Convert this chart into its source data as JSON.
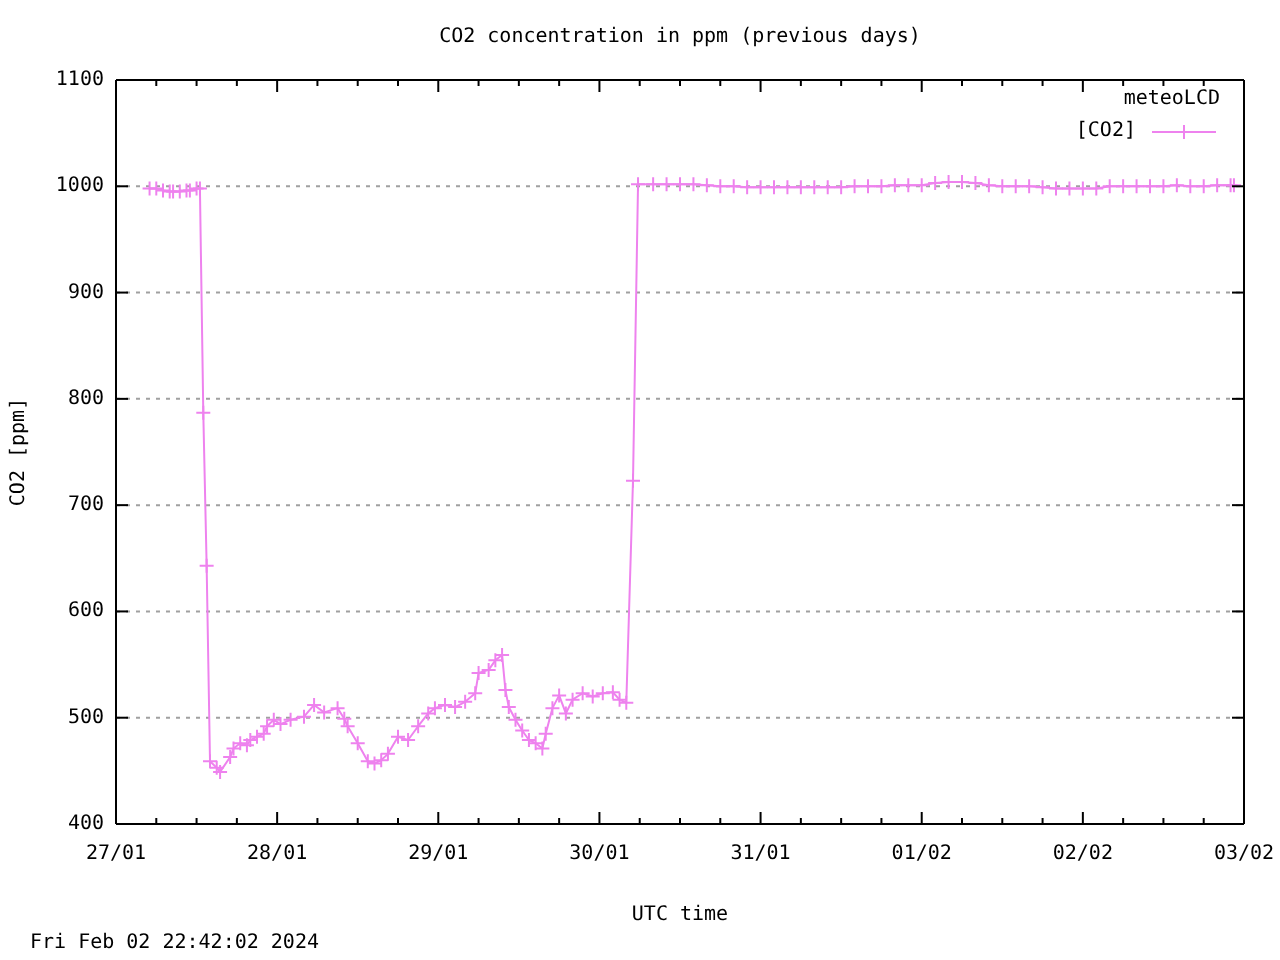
{
  "chart_data": {
    "type": "line",
    "title": "CO2 concentration in ppm (previous days)",
    "xlabel": "UTC time",
    "ylabel": "CO2 [ppm]",
    "legend_title": "meteoLCD",
    "annotations": [
      "Fri Feb 02 22:42:02 2024"
    ],
    "x": [
      "2024-01-27T05:00",
      "2024-01-27T06:00",
      "2024-01-27T07:00",
      "2024-01-27T08:00",
      "2024-01-27T08:30",
      "2024-01-27T09:30",
      "2024-01-27T10:30",
      "2024-01-27T11:00",
      "2024-01-27T12:00",
      "2024-01-27T12:30",
      "2024-01-27T13:00",
      "2024-01-27T13:30",
      "2024-01-27T14:00",
      "2024-01-27T15:00",
      "2024-01-27T15:30",
      "2024-01-27T17:00",
      "2024-01-27T17:30",
      "2024-01-27T18:30",
      "2024-01-27T19:30",
      "2024-01-27T20:00",
      "2024-01-27T21:00",
      "2024-01-27T22:00",
      "2024-01-27T22:30",
      "2024-01-27T23:30",
      "2024-01-28T00:30",
      "2024-01-28T02:00",
      "2024-01-28T04:00",
      "2024-01-28T05:30",
      "2024-01-28T07:00",
      "2024-01-28T09:00",
      "2024-01-28T10:00",
      "2024-01-28T10:30",
      "2024-01-28T12:00",
      "2024-01-28T13:30",
      "2024-01-28T14:30",
      "2024-01-28T15:30",
      "2024-01-28T16:30",
      "2024-01-28T18:00",
      "2024-01-28T19:30",
      "2024-01-28T21:00",
      "2024-01-28T22:30",
      "2024-01-28T23:30",
      "2024-01-29T01:00",
      "2024-01-29T02:30",
      "2024-01-29T04:00",
      "2024-01-29T05:30",
      "2024-01-29T06:00",
      "2024-01-29T07:30",
      "2024-01-29T08:30",
      "2024-01-29T09:30",
      "2024-01-29T10:00",
      "2024-01-29T10:30",
      "2024-01-29T11:30",
      "2024-01-29T12:30",
      "2024-01-29T13:30",
      "2024-01-29T14:30",
      "2024-01-29T15:30",
      "2024-01-29T16:00",
      "2024-01-29T17:00",
      "2024-01-29T18:00",
      "2024-01-29T19:00",
      "2024-01-29T20:00",
      "2024-01-29T21:30",
      "2024-01-29T23:00",
      "2024-01-30T00:30",
      "2024-01-30T02:00",
      "2024-01-30T03:00",
      "2024-01-30T04:00",
      "2024-01-30T05:00",
      "2024-01-30T05:45",
      "2024-01-30T08:00",
      "2024-01-30T10:00",
      "2024-01-30T12:00",
      "2024-01-30T14:00",
      "2024-01-30T16:00",
      "2024-01-30T18:00",
      "2024-01-30T20:00",
      "2024-01-30T22:00",
      "2024-01-31T00:00",
      "2024-01-31T02:00",
      "2024-01-31T04:00",
      "2024-01-31T06:00",
      "2024-01-31T08:00",
      "2024-01-31T10:00",
      "2024-01-31T12:00",
      "2024-01-31T14:00",
      "2024-01-31T16:00",
      "2024-01-31T18:00",
      "2024-01-31T20:00",
      "2024-01-31T22:00",
      "2024-02-01T00:00",
      "2024-02-01T02:00",
      "2024-02-01T04:00",
      "2024-02-01T06:00",
      "2024-02-01T08:00",
      "2024-02-01T10:00",
      "2024-02-01T12:00",
      "2024-02-01T14:00",
      "2024-02-01T16:00",
      "2024-02-01T18:00",
      "2024-02-01T20:00",
      "2024-02-01T22:00",
      "2024-02-02T00:00",
      "2024-02-02T02:00",
      "2024-02-02T04:00",
      "2024-02-02T06:00",
      "2024-02-02T08:00",
      "2024-02-02T10:00",
      "2024-02-02T12:00",
      "2024-02-02T14:00",
      "2024-02-02T16:00",
      "2024-02-02T18:00",
      "2024-02-02T20:00",
      "2024-02-02T22:00",
      "2024-02-02T22:30"
    ],
    "series": [
      {
        "name": "[CO2]",
        "color": "#ee82ee",
        "values": [
          998,
          998,
          996,
          995,
          995,
          995,
          996,
          996,
          998,
          998,
          787,
          643,
          459,
          453,
          449,
          463,
          471,
          476,
          474,
          479,
          482,
          485,
          492,
          498,
          494,
          498,
          501,
          512,
          505,
          509,
          499,
          492,
          476,
          459,
          457,
          460,
          466,
          482,
          479,
          492,
          504,
          509,
          512,
          510,
          515,
          523,
          542,
          545,
          554,
          559,
          526,
          510,
          498,
          488,
          479,
          476,
          471,
          485,
          509,
          521,
          504,
          517,
          523,
          520,
          523,
          524,
          517,
          514,
          723,
          1002,
          1002,
          1002,
          1002,
          1002,
          1001,
          1000,
          1000,
          999,
          999,
          999,
          999,
          999,
          999,
          999,
          999,
          1000,
          1000,
          1000,
          1001,
          1001,
          1001,
          1003,
          1004,
          1004,
          1003,
          1001,
          1000,
          1000,
          1000,
          999,
          998,
          998,
          998,
          998,
          1000,
          1000,
          1000,
          1000,
          1000,
          1001,
          1000,
          1000,
          1001,
          1001,
          1001
        ]
      }
    ],
    "xlim": [
      "2024-01-27",
      "2024-02-03"
    ],
    "xticks": [
      {
        "value": "2024-01-27",
        "label": "27/01"
      },
      {
        "value": "2024-01-27T06:00",
        "label": null
      },
      {
        "value": "2024-01-27T12:00",
        "label": null
      },
      {
        "value": "2024-01-27T18:00",
        "label": null
      },
      {
        "value": "2024-01-28",
        "label": "28/01"
      },
      {
        "value": "2024-01-28T06:00",
        "label": null
      },
      {
        "value": "2024-01-28T12:00",
        "label": null
      },
      {
        "value": "2024-01-28T18:00",
        "label": null
      },
      {
        "value": "2024-01-29",
        "label": "29/01"
      },
      {
        "value": "2024-01-29T06:00",
        "label": null
      },
      {
        "value": "2024-01-29T12:00",
        "label": null
      },
      {
        "value": "2024-01-29T18:00",
        "label": null
      },
      {
        "value": "2024-01-30",
        "label": "30/01"
      },
      {
        "value": "2024-01-30T06:00",
        "label": null
      },
      {
        "value": "2024-01-30T12:00",
        "label": null
      },
      {
        "value": "2024-01-30T18:00",
        "label": null
      },
      {
        "value": "2024-01-31",
        "label": "31/01"
      },
      {
        "value": "2024-01-31T06:00",
        "label": null
      },
      {
        "value": "2024-01-31T12:00",
        "label": null
      },
      {
        "value": "2024-01-31T18:00",
        "label": null
      },
      {
        "value": "2024-02-01",
        "label": "01/02"
      },
      {
        "value": "2024-02-01T06:00",
        "label": null
      },
      {
        "value": "2024-02-01T12:00",
        "label": null
      },
      {
        "value": "2024-02-01T18:00",
        "label": null
      },
      {
        "value": "2024-02-02",
        "label": "02/02"
      },
      {
        "value": "2024-02-02T06:00",
        "label": null
      },
      {
        "value": "2024-02-02T12:00",
        "label": null
      },
      {
        "value": "2024-02-02T18:00",
        "label": null
      },
      {
        "value": "2024-02-03",
        "label": "03/02"
      }
    ],
    "ylim": [
      400,
      1100
    ],
    "yticks": [
      400,
      500,
      600,
      700,
      800,
      900,
      1000,
      1100
    ],
    "grid": "y",
    "legend": "top right",
    "marker": "cross",
    "line_style": "solid"
  }
}
